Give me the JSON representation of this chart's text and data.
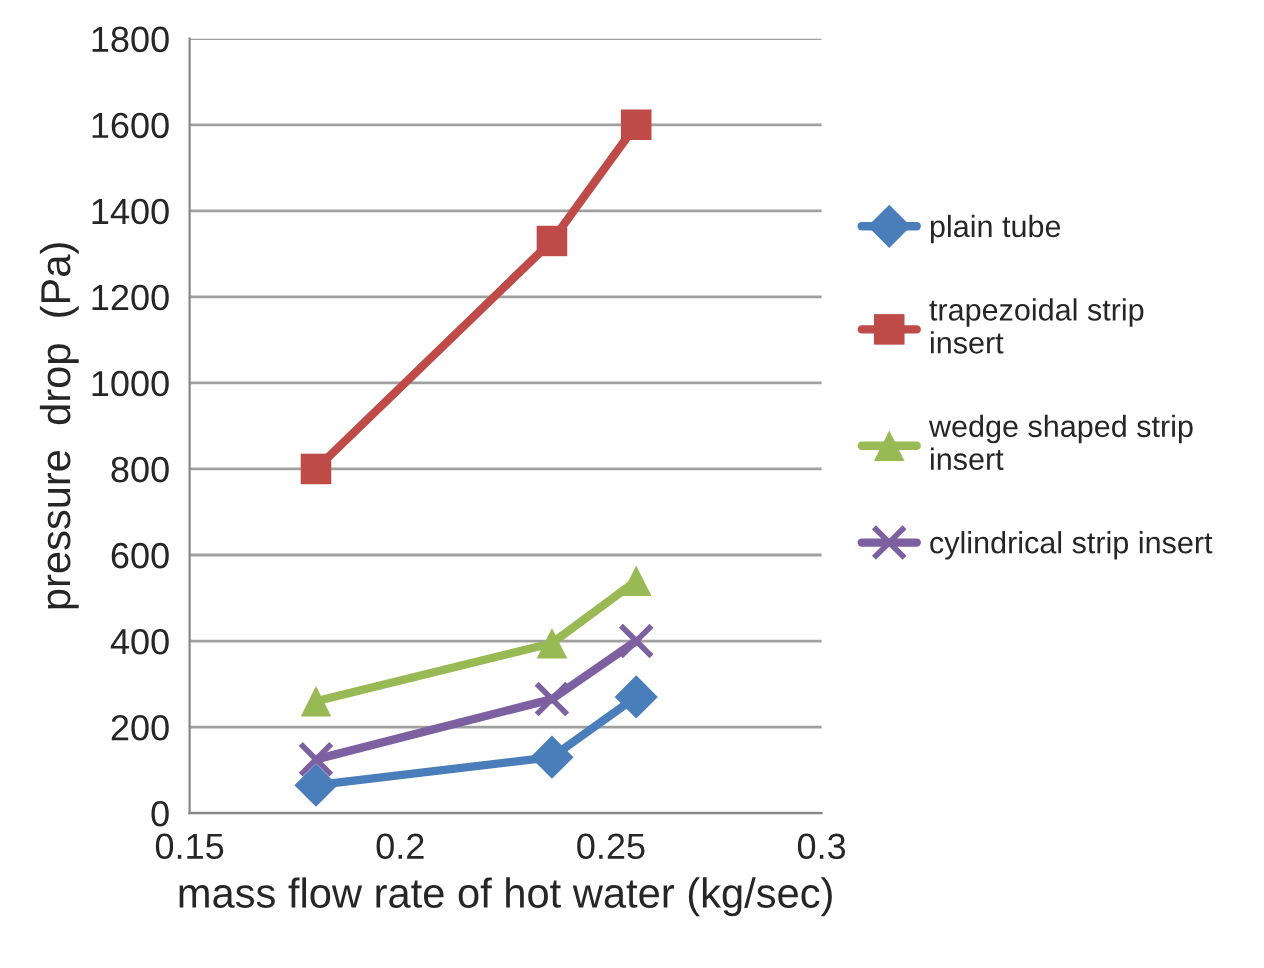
{
  "chart_data": {
    "type": "line",
    "xlabel": "mass flow rate of hot water (kg/sec)",
    "ylabel": "pressure  drop  (Pa)",
    "x": [
      0.18,
      0.236,
      0.256
    ],
    "series": [
      {
        "name": "plain tube",
        "color": "#4a7ebb",
        "marker": "diamond",
        "values": [
          65,
          130,
          270
        ]
      },
      {
        "name": "trapezoidal strip\ninsert",
        "color": "#be4b48",
        "marker": "square",
        "values": [
          800,
          1330,
          1600
        ]
      },
      {
        "name": "wedge shaped strip\ninsert",
        "color": "#98b954",
        "marker": "triangle",
        "values": [
          260,
          395,
          540
        ]
      },
      {
        "name": "cylindrical strip insert",
        "color": "#7d60a0",
        "marker": "cross",
        "values": [
          125,
          265,
          400
        ]
      }
    ],
    "xlim": [
      0.15,
      0.3
    ],
    "xticks": [
      0.15,
      0.2,
      0.25,
      0.3
    ],
    "ylim": [
      0,
      1800
    ],
    "yticks": [
      0,
      200,
      400,
      600,
      800,
      1000,
      1200,
      1400,
      1600,
      1800
    ],
    "grid": "y",
    "legend": "right",
    "line_style": "solid"
  }
}
